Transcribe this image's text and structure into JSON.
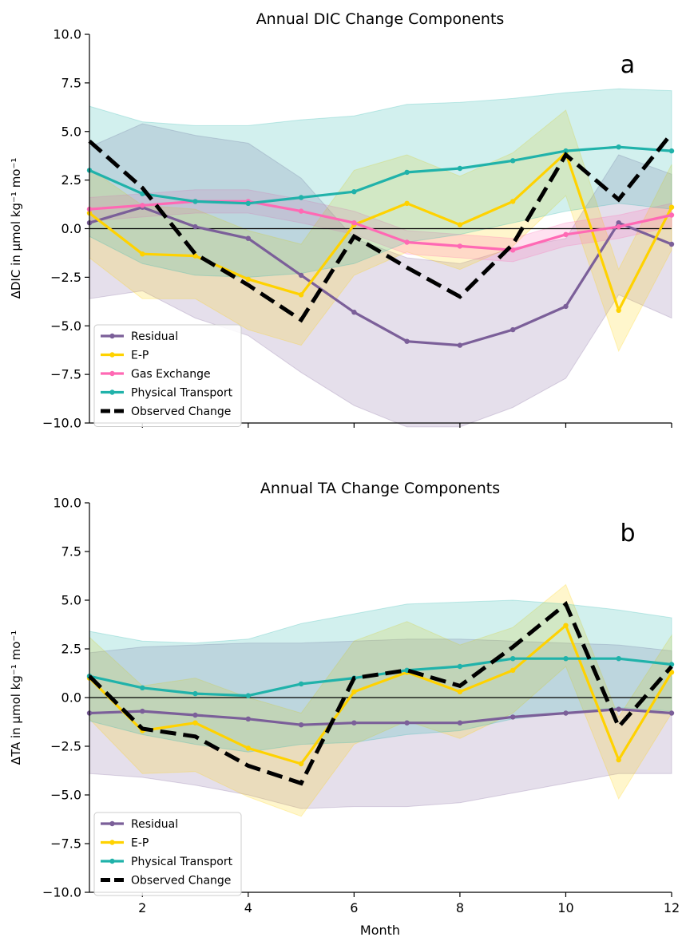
{
  "chart_data": [
    {
      "type": "line",
      "title": "Annual DIC Change Components",
      "panel_label": "a",
      "ylabel": "ΔDIC in μmol kg⁻¹ mo⁻¹",
      "xlabel": "",
      "xlim": [
        1,
        12
      ],
      "ylim": [
        -10,
        10
      ],
      "yticks": [
        "10.0",
        "7.5",
        "5.0",
        "2.5",
        "0.0",
        "−2.5",
        "−5.0",
        "−7.5",
        "−10.0"
      ],
      "xticks": [],
      "x": [
        1,
        2,
        3,
        4,
        5,
        6,
        7,
        8,
        9,
        10,
        11,
        12
      ],
      "zero_line": true,
      "legend_position": "lower-left",
      "series": [
        {
          "name": "Residual",
          "color": "#7b5f99",
          "style": "solid-marker",
          "values": [
            0.3,
            1.1,
            0.1,
            -0.5,
            -2.4,
            -4.3,
            -5.8,
            -6.0,
            -5.2,
            -4.0,
            0.3,
            -0.8
          ],
          "band_upper": [
            4.2,
            5.4,
            4.8,
            4.4,
            2.6,
            -0.5,
            -1.5,
            -1.8,
            -1.0,
            -0.5,
            3.8,
            2.8
          ],
          "band_lower": [
            -3.6,
            -3.2,
            -4.6,
            -5.5,
            -7.4,
            -9.1,
            -10.2,
            -10.2,
            -9.2,
            -7.7,
            -3.4,
            -4.6
          ]
        },
        {
          "name": "E-P",
          "color": "#ffd200",
          "style": "solid-marker",
          "values": [
            0.8,
            -1.3,
            -1.4,
            -2.6,
            -3.4,
            0.2,
            1.3,
            0.2,
            1.4,
            3.9,
            -4.2,
            1.1
          ],
          "band_upper": [
            3.1,
            1.2,
            1.0,
            -0.1,
            -0.8,
            3.0,
            3.8,
            2.7,
            3.9,
            6.1,
            -2.1,
            3.3
          ],
          "band_lower": [
            -1.5,
            -3.6,
            -3.6,
            -5.2,
            -6.0,
            -2.4,
            -1.2,
            -2.1,
            -0.9,
            1.7,
            -6.3,
            -1.1
          ]
        },
        {
          "name": "Gas Exchange",
          "color": "#ff69b4",
          "style": "solid-marker",
          "values": [
            1.0,
            1.2,
            1.4,
            1.4,
            0.9,
            0.3,
            -0.7,
            -0.9,
            -1.1,
            -0.3,
            0.1,
            0.7
          ],
          "band_upper": [
            1.6,
            1.8,
            2.0,
            2.0,
            1.5,
            0.9,
            -0.1,
            -0.3,
            -0.5,
            0.3,
            0.7,
            1.3
          ],
          "band_lower": [
            0.4,
            0.6,
            0.8,
            0.8,
            0.3,
            -0.3,
            -1.3,
            -1.5,
            -1.7,
            -0.9,
            -0.5,
            0.1
          ]
        },
        {
          "name": "Physical Transport",
          "color": "#20b2aa",
          "style": "solid-marker",
          "values": [
            3.0,
            1.8,
            1.4,
            1.3,
            1.6,
            1.9,
            2.9,
            3.1,
            3.5,
            4.0,
            4.2,
            4.0
          ],
          "band_upper": [
            6.3,
            5.5,
            5.3,
            5.3,
            5.6,
            5.8,
            6.4,
            6.5,
            6.7,
            7.0,
            7.2,
            7.1
          ],
          "band_lower": [
            -0.4,
            -1.8,
            -2.4,
            -2.5,
            -2.3,
            -1.8,
            -0.7,
            -0.3,
            0.3,
            0.9,
            1.3,
            1.0
          ]
        },
        {
          "name": "Observed Change",
          "color": "#000000",
          "style": "dashed",
          "values": [
            4.5,
            2.1,
            -1.3,
            -2.9,
            -4.7,
            -0.4,
            -2.0,
            -3.5,
            -0.8,
            3.8,
            1.5,
            4.9
          ]
        }
      ]
    },
    {
      "type": "line",
      "title": "Annual TA Change Components",
      "panel_label": "b",
      "ylabel": "ΔTA in μmol kg⁻¹ mo⁻¹",
      "xlabel": "Month",
      "xlim": [
        1,
        12
      ],
      "ylim": [
        -10,
        10
      ],
      "yticks": [
        "10.0",
        "7.5",
        "5.0",
        "2.5",
        "0.0",
        "−2.5",
        "−5.0",
        "−7.5",
        "−10.0"
      ],
      "xticks": [
        "2",
        "4",
        "6",
        "8",
        "10",
        "12"
      ],
      "x": [
        1,
        2,
        3,
        4,
        5,
        6,
        7,
        8,
        9,
        10,
        11,
        12
      ],
      "zero_line": true,
      "legend_position": "lower-left",
      "series": [
        {
          "name": "Residual",
          "color": "#7b5f99",
          "style": "solid-marker",
          "values": [
            -0.8,
            -0.7,
            -0.9,
            -1.1,
            -1.4,
            -1.3,
            -1.3,
            -1.3,
            -1.0,
            -0.8,
            -0.6,
            -0.8
          ],
          "band_upper": [
            2.3,
            2.6,
            2.7,
            2.8,
            2.8,
            2.9,
            3.0,
            3.0,
            2.9,
            2.8,
            2.7,
            2.4
          ],
          "band_lower": [
            -3.9,
            -4.1,
            -4.5,
            -5.0,
            -5.7,
            -5.6,
            -5.6,
            -5.4,
            -4.9,
            -4.4,
            -3.9,
            -3.9
          ]
        },
        {
          "name": "E-P",
          "color": "#ffd200",
          "style": "solid-marker",
          "values": [
            1.0,
            -1.7,
            -1.3,
            -2.6,
            -3.4,
            0.3,
            1.3,
            0.3,
            1.4,
            3.7,
            -3.2,
            1.3
          ],
          "band_upper": [
            3.1,
            0.6,
            1.0,
            0.0,
            -0.8,
            2.9,
            3.9,
            2.7,
            3.6,
            5.8,
            -1.0,
            3.2
          ],
          "band_lower": [
            -1.1,
            -3.9,
            -3.8,
            -5.1,
            -6.1,
            -2.4,
            -1.2,
            -2.1,
            -0.8,
            1.6,
            -5.2,
            -0.8
          ]
        },
        {
          "name": "Physical Transport",
          "color": "#20b2aa",
          "style": "solid-marker",
          "values": [
            1.1,
            0.5,
            0.2,
            0.1,
            0.7,
            1.0,
            1.4,
            1.6,
            2.0,
            2.0,
            2.0,
            1.7
          ],
          "band_upper": [
            3.4,
            2.9,
            2.8,
            3.0,
            3.8,
            4.3,
            4.8,
            4.9,
            5.0,
            4.8,
            4.5,
            4.1
          ],
          "band_lower": [
            -1.2,
            -1.9,
            -2.4,
            -2.8,
            -2.4,
            -2.3,
            -1.9,
            -1.7,
            -1.1,
            -0.8,
            -0.5,
            -0.7
          ]
        },
        {
          "name": "Observed Change",
          "color": "#000000",
          "style": "dashed",
          "values": [
            1.1,
            -1.6,
            -2.0,
            -3.5,
            -4.4,
            1.0,
            1.4,
            0.6,
            2.6,
            4.8,
            -1.5,
            1.6
          ]
        }
      ]
    }
  ]
}
